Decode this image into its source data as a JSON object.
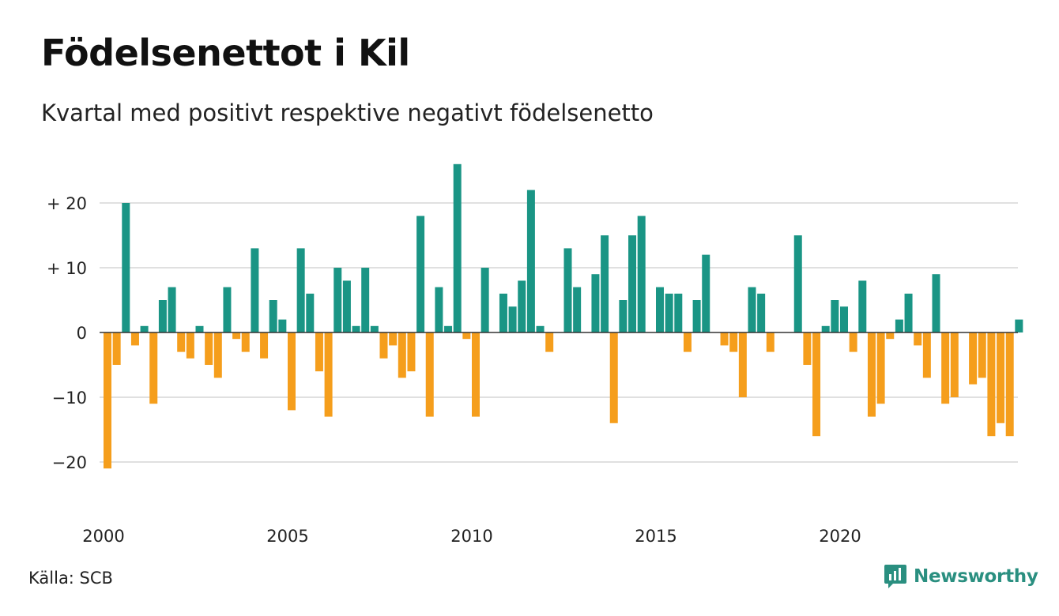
{
  "title": "Födelsenettot i Kil",
  "subtitle": "Kvartal med positivt respektive negativt födelsenetto",
  "source": "Källa: SCB",
  "brand": "Newsworthy",
  "colors": {
    "positive": "#1a9585",
    "negative": "#f59e1c",
    "grid": "#e0e0e0",
    "zero_line": "#333333",
    "brand": "#2a8f80"
  },
  "chart_data": {
    "type": "bar",
    "x_start": "2000 Q1",
    "xticks": [
      2000,
      2005,
      2010,
      2015,
      2020
    ],
    "yticks": [
      -20,
      -10,
      0,
      10,
      20
    ],
    "ytick_labels": [
      "−20",
      "−10",
      "0",
      "+ 10",
      "+ 20"
    ],
    "ylim": [
      -23,
      27
    ],
    "grid": true,
    "values": [
      -21,
      -5,
      20,
      -2,
      1,
      -11,
      5,
      7,
      -3,
      -4,
      1,
      -5,
      -7,
      7,
      -1,
      -3,
      13,
      -4,
      5,
      2,
      -12,
      13,
      6,
      -6,
      -13,
      10,
      8,
      1,
      10,
      1,
      -4,
      -2,
      -7,
      -6,
      18,
      -13,
      7,
      1,
      26,
      -1,
      -13,
      10,
      0,
      6,
      4,
      8,
      22,
      1,
      -3,
      0,
      13,
      7,
      0,
      9,
      15,
      -14,
      5,
      15,
      18,
      0,
      7,
      6,
      6,
      -3,
      5,
      12,
      0,
      -2,
      -3,
      -10,
      7,
      6,
      -3,
      0,
      0,
      15,
      -5,
      -16,
      1,
      5,
      4,
      -3,
      8,
      -13,
      -11,
      -1,
      2,
      6,
      -2,
      -7,
      9,
      -11,
      -10,
      0,
      -8,
      -7,
      -16,
      -14,
      -16,
      2
    ]
  }
}
